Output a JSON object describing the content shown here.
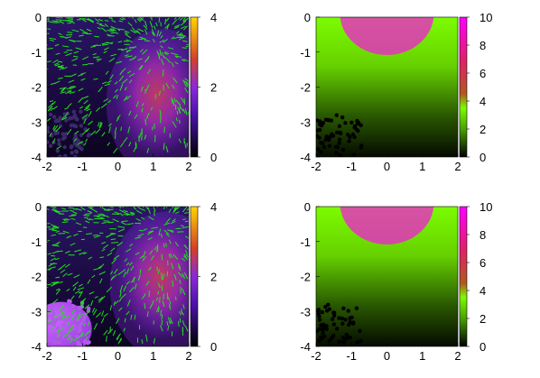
{
  "chart_data": [
    {
      "type": "heatmap",
      "subtype": "vector-field",
      "x": [
        "-2",
        "-1",
        "0",
        "1",
        "2"
      ],
      "y": [
        "0",
        "-1",
        "-2",
        "-3",
        "-4"
      ],
      "xlim": [
        -2,
        2
      ],
      "ylim": [
        -4,
        0
      ],
      "colorbar": {
        "ticks": [
          "0",
          "2",
          "4"
        ],
        "range": [
          0,
          4
        ],
        "colors": [
          "#000000",
          "#7b1fe0",
          "#d2402a",
          "#ffd400"
        ]
      },
      "arrow_color": "#22e020",
      "description_values": {
        "hotspot_x": 1.1,
        "hotspot_y": -2.2,
        "hotspot_value": 2.5
      }
    },
    {
      "type": "heatmap",
      "x": [
        "-2",
        "-1",
        "0",
        "1",
        "2"
      ],
      "y": [
        "0",
        "-1",
        "-2",
        "-3",
        "-4"
      ],
      "xlim": [
        -2,
        2
      ],
      "ylim": [
        -4,
        0
      ],
      "colorbar": {
        "ticks": [
          "0",
          "2",
          "4",
          "6",
          "8",
          "10"
        ],
        "range": [
          0,
          10
        ],
        "colors": [
          "#000000",
          "#60c800",
          "#7cfc00",
          "#b05a20",
          "#e0206a",
          "#ff00ff"
        ]
      },
      "peak": {
        "x": 0,
        "y": 0,
        "value": 10
      }
    },
    {
      "type": "heatmap",
      "subtype": "vector-field",
      "x": [
        "-2",
        "-1",
        "0",
        "1",
        "2"
      ],
      "y": [
        "0",
        "-1",
        "-2",
        "-3",
        "-4"
      ],
      "xlim": [
        -2,
        2
      ],
      "ylim": [
        -4,
        0
      ],
      "colorbar": {
        "ticks": [
          "0",
          "2",
          "4"
        ],
        "range": [
          0,
          4
        ],
        "colors": [
          "#000000",
          "#7b1fe0",
          "#d2402a",
          "#ffd400"
        ]
      },
      "arrow_color": "#22e020",
      "description_values": {
        "hotspot_x": 1.2,
        "hotspot_y": -2.0,
        "hotspot_value": 2.8,
        "blob_x": -1.6,
        "blob_y": -3.5
      }
    },
    {
      "type": "heatmap",
      "x": [
        "-2",
        "-1",
        "0",
        "1",
        "2"
      ],
      "y": [
        "0",
        "-1",
        "-2",
        "-3",
        "-4"
      ],
      "xlim": [
        -2,
        2
      ],
      "ylim": [
        -4,
        0
      ],
      "colorbar": {
        "ticks": [
          "0",
          "2",
          "4",
          "6",
          "8",
          "10"
        ],
        "range": [
          0,
          10
        ],
        "colors": [
          "#000000",
          "#60c800",
          "#7cfc00",
          "#b05a20",
          "#e0206a",
          "#ff00ff"
        ]
      },
      "peak": {
        "x": 0,
        "y": 0,
        "value": 10
      }
    }
  ]
}
